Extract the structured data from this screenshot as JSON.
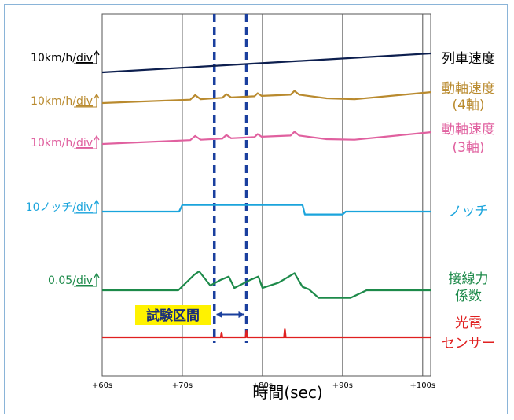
{
  "chart_data": {
    "type": "line",
    "xlabel": "時間(sec)",
    "x_ticks": [
      {
        "value": 60,
        "label": "+60s"
      },
      {
        "value": 70,
        "label": "+70s"
      },
      {
        "value": 80,
        "label": "+80s"
      },
      {
        "value": 90,
        "label": "+90s"
      },
      {
        "value": 100,
        "label": "+100s"
      }
    ],
    "xlim": [
      60,
      101
    ],
    "grid": true,
    "test_interval": {
      "label": "試験区間",
      "start": 74,
      "end": 78
    },
    "series": [
      {
        "name": "列車速度",
        "scale": "10km/h/",
        "unit": "div",
        "color": "#0d1f4f",
        "points": [
          [
            60,
            0
          ],
          [
            101,
            1.0
          ]
        ]
      },
      {
        "name": "動軸速度",
        "name2": "(4軸)",
        "scale": "10km/h/",
        "unit": "div",
        "color": "#b98a2e",
        "points": [
          [
            60,
            0
          ],
          [
            71,
            0.18
          ],
          [
            71.6,
            0.42
          ],
          [
            72.3,
            0.2
          ],
          [
            75,
            0.28
          ],
          [
            75.5,
            0.47
          ],
          [
            76.1,
            0.3
          ],
          [
            79,
            0.36
          ],
          [
            79.4,
            0.52
          ],
          [
            79.9,
            0.38
          ],
          [
            83.5,
            0.44
          ],
          [
            84,
            0.64
          ],
          [
            84.6,
            0.44
          ],
          [
            88,
            0.25
          ],
          [
            91.5,
            0.2
          ],
          [
            101,
            0.58
          ]
        ]
      },
      {
        "name": "動軸速度",
        "name2": "(3軸)",
        "scale": "10km/h/",
        "unit": "div",
        "color": "#e0609f",
        "points": [
          [
            60,
            0
          ],
          [
            71,
            0.2
          ],
          [
            71.6,
            0.42
          ],
          [
            72.3,
            0.22
          ],
          [
            75,
            0.28
          ],
          [
            75.5,
            0.47
          ],
          [
            76.1,
            0.3
          ],
          [
            79,
            0.36
          ],
          [
            79.4,
            0.52
          ],
          [
            79.9,
            0.38
          ],
          [
            83.5,
            0.44
          ],
          [
            84,
            0.64
          ],
          [
            84.6,
            0.44
          ],
          [
            88,
            0.25
          ],
          [
            91.5,
            0.22
          ],
          [
            101,
            0.62
          ]
        ]
      },
      {
        "name": "ノッチ",
        "scale": "10ノッチ/",
        "unit": "div",
        "color": "#1aa4dc",
        "points": [
          [
            60,
            0
          ],
          [
            69.6,
            0
          ],
          [
            70,
            0.35
          ],
          [
            85,
            0.35
          ],
          [
            85.3,
            -0.15
          ],
          [
            90,
            -0.15
          ],
          [
            90.4,
            0
          ],
          [
            101,
            0
          ]
        ]
      },
      {
        "name": "接線力",
        "name2": "係数",
        "scale": "0.05/",
        "unit": "div",
        "color": "#1d8a4a",
        "points": [
          [
            60,
            0
          ],
          [
            69.5,
            0
          ],
          [
            71.5,
            0.82
          ],
          [
            72.1,
            1.0
          ],
          [
            73.5,
            0.25
          ],
          [
            74.8,
            0.55
          ],
          [
            75.8,
            0.72
          ],
          [
            76.5,
            0.12
          ],
          [
            78.5,
            0.55
          ],
          [
            79.5,
            0.72
          ],
          [
            80,
            0.12
          ],
          [
            82,
            0.4
          ],
          [
            84,
            0.9
          ],
          [
            85,
            0.18
          ],
          [
            85.8,
            0.05
          ],
          [
            87,
            -0.4
          ],
          [
            91,
            -0.4
          ],
          [
            93,
            0
          ],
          [
            101,
            0
          ]
        ]
      },
      {
        "name": "光電",
        "name2": "センサー",
        "scale": "",
        "unit": "",
        "color": "#e02020",
        "points": [
          [
            60,
            0
          ],
          [
            74.8,
            0
          ],
          [
            74.9,
            0.25
          ],
          [
            75,
            0
          ],
          [
            77.9,
            0
          ],
          [
            78,
            0.35
          ],
          [
            78.1,
            0
          ],
          [
            82.7,
            0
          ],
          [
            82.8,
            0.45
          ],
          [
            82.9,
            0
          ],
          [
            101,
            0
          ]
        ]
      }
    ]
  }
}
